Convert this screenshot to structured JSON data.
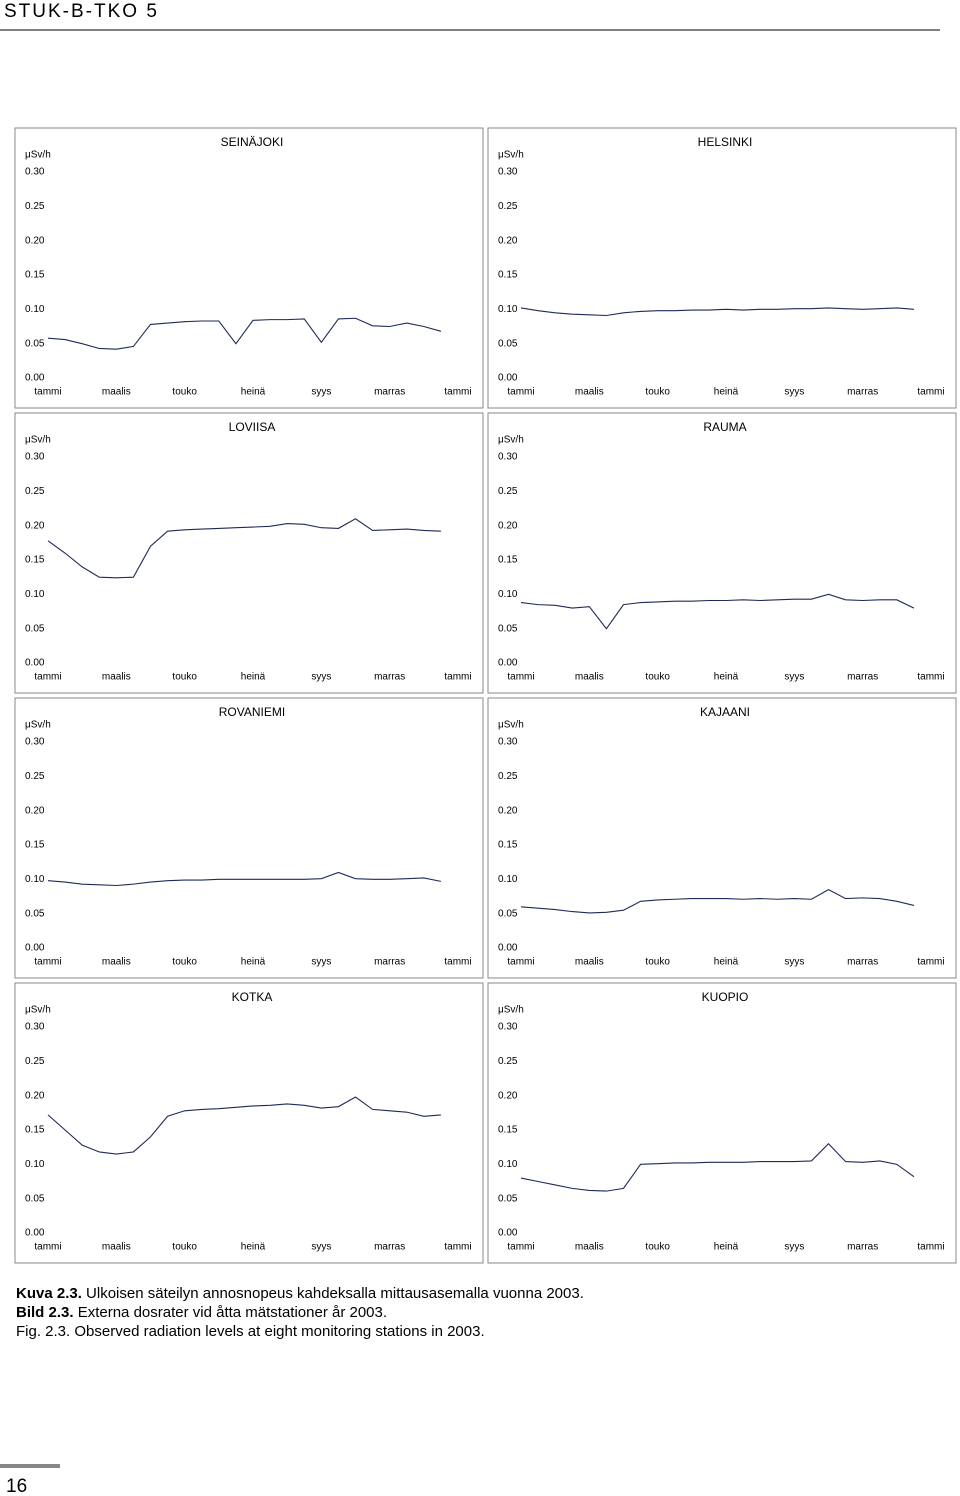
{
  "header": "STUK-B-TKO 5",
  "caption": [
    {
      "label": "Kuva 2.3.",
      "text": "Ulkoisen säteilyn annosnopeus kahdeksalla mittausasemalla vuonna 2003."
    },
    {
      "label": "Bild 2.3.",
      "text": "Externa dosrater vid åtta mätstationer år 2003."
    },
    {
      "label": "Fig. 2.3.",
      "text": "Observed radiation levels at eight monitoring stations in 2003."
    }
  ],
  "page_number": "16",
  "chart_data": [
    {
      "type": "line",
      "title": "SEINÄJOKI",
      "ylabel": "μSv/h",
      "color": "#1f2a5a",
      "x": [
        0,
        0.5,
        1,
        1.5,
        2,
        2.5,
        3,
        3.5,
        4,
        4.5,
        5,
        5.5,
        6,
        6.5,
        7,
        7.5,
        8,
        8.5,
        9,
        9.5,
        10,
        10.5,
        11,
        11.5
      ],
      "values": [
        0.058,
        0.056,
        0.05,
        0.043,
        0.042,
        0.046,
        0.078,
        0.08,
        0.082,
        0.083,
        0.083,
        0.05,
        0.084,
        0.085,
        0.085,
        0.086,
        0.052,
        0.086,
        0.087,
        0.076,
        0.075,
        0.08,
        0.075,
        0.068
      ],
      "xlim": [
        0,
        12
      ],
      "xticks": [
        {
          "value": 0,
          "label": "tammi"
        },
        {
          "value": 2,
          "label": "maalis"
        },
        {
          "value": 4,
          "label": "touko"
        },
        {
          "value": 6,
          "label": "heinä"
        },
        {
          "value": 8,
          "label": "syys"
        },
        {
          "value": 10,
          "label": "marras"
        },
        {
          "value": 12,
          "label": "tammi"
        }
      ],
      "ylim": [
        0,
        0.3
      ],
      "yticks": [
        {
          "value": 0,
          "label": "0.00"
        },
        {
          "value": 0.05,
          "label": "0.05"
        },
        {
          "value": 0.1,
          "label": "0.10"
        },
        {
          "value": 0.15,
          "label": "0.15"
        },
        {
          "value": 0.2,
          "label": "0.20"
        },
        {
          "value": 0.25,
          "label": "0.25"
        },
        {
          "value": 0.3,
          "label": "0.30"
        }
      ]
    },
    {
      "type": "line",
      "title": "HELSINKI",
      "ylabel": "μSv/h",
      "color": "#1f2a5a",
      "x": [
        0,
        0.5,
        1,
        1.5,
        2,
        2.5,
        3,
        3.5,
        4,
        4.5,
        5,
        5.5,
        6,
        6.5,
        7,
        7.5,
        8,
        8.5,
        9,
        9.5,
        10,
        10.5,
        11,
        11.5
      ],
      "values": [
        0.102,
        0.098,
        0.095,
        0.093,
        0.092,
        0.091,
        0.095,
        0.097,
        0.098,
        0.098,
        0.099,
        0.099,
        0.1,
        0.099,
        0.1,
        0.1,
        0.101,
        0.101,
        0.102,
        0.101,
        0.1,
        0.101,
        0.102,
        0.1
      ],
      "xlim": [
        0,
        12
      ],
      "xticks": [
        {
          "value": 0,
          "label": "tammi"
        },
        {
          "value": 2,
          "label": "maalis"
        },
        {
          "value": 4,
          "label": "touko"
        },
        {
          "value": 6,
          "label": "heinä"
        },
        {
          "value": 8,
          "label": "syys"
        },
        {
          "value": 10,
          "label": "marras"
        },
        {
          "value": 12,
          "label": "tammi"
        }
      ],
      "ylim": [
        0,
        0.3
      ],
      "yticks": [
        {
          "value": 0,
          "label": "0.00"
        },
        {
          "value": 0.05,
          "label": "0.05"
        },
        {
          "value": 0.1,
          "label": "0.10"
        },
        {
          "value": 0.15,
          "label": "0.15"
        },
        {
          "value": 0.2,
          "label": "0.20"
        },
        {
          "value": 0.25,
          "label": "0.25"
        },
        {
          "value": 0.3,
          "label": "0.30"
        }
      ]
    },
    {
      "type": "line",
      "title": "LOVIISA",
      "ylabel": "μSv/h",
      "color": "#1f2a5a",
      "x": [
        0,
        0.5,
        1,
        1.5,
        2,
        2.5,
        3,
        3.5,
        4,
        4.5,
        5,
        5.5,
        6,
        6.5,
        7,
        7.5,
        8,
        8.5,
        9,
        9.5,
        10,
        10.5,
        11,
        11.5
      ],
      "values": [
        0.178,
        0.16,
        0.14,
        0.125,
        0.124,
        0.125,
        0.17,
        0.192,
        0.194,
        0.195,
        0.196,
        0.197,
        0.198,
        0.199,
        0.203,
        0.202,
        0.197,
        0.196,
        0.21,
        0.193,
        0.194,
        0.195,
        0.193,
        0.192
      ],
      "xlim": [
        0,
        12
      ],
      "xticks": [
        {
          "value": 0,
          "label": "tammi"
        },
        {
          "value": 2,
          "label": "maalis"
        },
        {
          "value": 4,
          "label": "touko"
        },
        {
          "value": 6,
          "label": "heinä"
        },
        {
          "value": 8,
          "label": "syys"
        },
        {
          "value": 10,
          "label": "marras"
        },
        {
          "value": 12,
          "label": "tammi"
        }
      ],
      "ylim": [
        0,
        0.3
      ],
      "yticks": [
        {
          "value": 0,
          "label": "0.00"
        },
        {
          "value": 0.05,
          "label": "0.05"
        },
        {
          "value": 0.1,
          "label": "0.10"
        },
        {
          "value": 0.15,
          "label": "0.15"
        },
        {
          "value": 0.2,
          "label": "0.20"
        },
        {
          "value": 0.25,
          "label": "0.25"
        },
        {
          "value": 0.3,
          "label": "0.30"
        }
      ]
    },
    {
      "type": "line",
      "title": "RAUMA",
      "ylabel": "μSv/h",
      "color": "#1f2a5a",
      "x": [
        0,
        0.5,
        1,
        1.5,
        2,
        2.5,
        3,
        3.5,
        4,
        4.5,
        5,
        5.5,
        6,
        6.5,
        7,
        7.5,
        8,
        8.5,
        9,
        9.5,
        10,
        10.5,
        11,
        11.5
      ],
      "values": [
        0.088,
        0.085,
        0.084,
        0.08,
        0.082,
        0.05,
        0.085,
        0.088,
        0.089,
        0.09,
        0.09,
        0.091,
        0.091,
        0.092,
        0.091,
        0.092,
        0.093,
        0.093,
        0.1,
        0.092,
        0.091,
        0.092,
        0.092,
        0.08
      ],
      "xlim": [
        0,
        12
      ],
      "xticks": [
        {
          "value": 0,
          "label": "tammi"
        },
        {
          "value": 2,
          "label": "maalis"
        },
        {
          "value": 4,
          "label": "touko"
        },
        {
          "value": 6,
          "label": "heinä"
        },
        {
          "value": 8,
          "label": "syys"
        },
        {
          "value": 10,
          "label": "marras"
        },
        {
          "value": 12,
          "label": "tammi"
        }
      ],
      "ylim": [
        0,
        0.3
      ],
      "yticks": [
        {
          "value": 0,
          "label": "0.00"
        },
        {
          "value": 0.05,
          "label": "0.05"
        },
        {
          "value": 0.1,
          "label": "0.10"
        },
        {
          "value": 0.15,
          "label": "0.15"
        },
        {
          "value": 0.2,
          "label": "0.20"
        },
        {
          "value": 0.25,
          "label": "0.25"
        },
        {
          "value": 0.3,
          "label": "0.30"
        }
      ]
    },
    {
      "type": "line",
      "title": "ROVANIEMI",
      "ylabel": "μSv/h",
      "color": "#1f2a5a",
      "x": [
        0,
        0.5,
        1,
        1.5,
        2,
        2.5,
        3,
        3.5,
        4,
        4.5,
        5,
        5.5,
        6,
        6.5,
        7,
        7.5,
        8,
        8.5,
        9,
        9.5,
        10,
        10.5,
        11,
        11.5
      ],
      "values": [
        0.098,
        0.096,
        0.093,
        0.092,
        0.091,
        0.093,
        0.096,
        0.098,
        0.099,
        0.099,
        0.1,
        0.1,
        0.1,
        0.1,
        0.1,
        0.1,
        0.101,
        0.11,
        0.101,
        0.1,
        0.1,
        0.101,
        0.102,
        0.097
      ],
      "xlim": [
        0,
        12
      ],
      "xticks": [
        {
          "value": 0,
          "label": "tammi"
        },
        {
          "value": 2,
          "label": "maalis"
        },
        {
          "value": 4,
          "label": "touko"
        },
        {
          "value": 6,
          "label": "heinä"
        },
        {
          "value": 8,
          "label": "syys"
        },
        {
          "value": 10,
          "label": "marras"
        },
        {
          "value": 12,
          "label": "tammi"
        }
      ],
      "ylim": [
        0,
        0.3
      ],
      "yticks": [
        {
          "value": 0,
          "label": "0.00"
        },
        {
          "value": 0.05,
          "label": "0.05"
        },
        {
          "value": 0.1,
          "label": "0.10"
        },
        {
          "value": 0.15,
          "label": "0.15"
        },
        {
          "value": 0.2,
          "label": "0.20"
        },
        {
          "value": 0.25,
          "label": "0.25"
        },
        {
          "value": 0.3,
          "label": "0.30"
        }
      ]
    },
    {
      "type": "line",
      "title": "KAJAANI",
      "ylabel": "μSv/h",
      "color": "#1f2a5a",
      "x": [
        0,
        0.5,
        1,
        1.5,
        2,
        2.5,
        3,
        3.5,
        4,
        4.5,
        5,
        5.5,
        6,
        6.5,
        7,
        7.5,
        8,
        8.5,
        9,
        9.5,
        10,
        10.5,
        11,
        11.5
      ],
      "values": [
        0.06,
        0.058,
        0.056,
        0.053,
        0.051,
        0.052,
        0.055,
        0.068,
        0.07,
        0.071,
        0.072,
        0.072,
        0.072,
        0.071,
        0.072,
        0.071,
        0.072,
        0.071,
        0.085,
        0.072,
        0.073,
        0.072,
        0.068,
        0.062
      ],
      "xlim": [
        0,
        12
      ],
      "xticks": [
        {
          "value": 0,
          "label": "tammi"
        },
        {
          "value": 2,
          "label": "maalis"
        },
        {
          "value": 4,
          "label": "touko"
        },
        {
          "value": 6,
          "label": "heinä"
        },
        {
          "value": 8,
          "label": "syys"
        },
        {
          "value": 10,
          "label": "marras"
        },
        {
          "value": 12,
          "label": "tammi"
        }
      ],
      "ylim": [
        0,
        0.3
      ],
      "yticks": [
        {
          "value": 0,
          "label": "0.00"
        },
        {
          "value": 0.05,
          "label": "0.05"
        },
        {
          "value": 0.1,
          "label": "0.10"
        },
        {
          "value": 0.15,
          "label": "0.15"
        },
        {
          "value": 0.2,
          "label": "0.20"
        },
        {
          "value": 0.25,
          "label": "0.25"
        },
        {
          "value": 0.3,
          "label": "0.30"
        }
      ]
    },
    {
      "type": "line",
      "title": "KOTKA",
      "ylabel": "μSv/h",
      "color": "#1f2a5a",
      "x": [
        0,
        0.5,
        1,
        1.5,
        2,
        2.5,
        3,
        3.5,
        4,
        4.5,
        5,
        5.5,
        6,
        6.5,
        7,
        7.5,
        8,
        8.5,
        9,
        9.5,
        10,
        10.5,
        11,
        11.5
      ],
      "values": [
        0.172,
        0.15,
        0.128,
        0.118,
        0.115,
        0.118,
        0.14,
        0.17,
        0.178,
        0.18,
        0.181,
        0.183,
        0.185,
        0.186,
        0.188,
        0.186,
        0.182,
        0.184,
        0.198,
        0.18,
        0.178,
        0.176,
        0.17,
        0.172
      ],
      "xlim": [
        0,
        12
      ],
      "xticks": [
        {
          "value": 0,
          "label": "tammi"
        },
        {
          "value": 2,
          "label": "maalis"
        },
        {
          "value": 4,
          "label": "touko"
        },
        {
          "value": 6,
          "label": "heinä"
        },
        {
          "value": 8,
          "label": "syys"
        },
        {
          "value": 10,
          "label": "marras"
        },
        {
          "value": 12,
          "label": "tammi"
        }
      ],
      "ylim": [
        0,
        0.3
      ],
      "yticks": [
        {
          "value": 0,
          "label": "0.00"
        },
        {
          "value": 0.05,
          "label": "0.05"
        },
        {
          "value": 0.1,
          "label": "0.10"
        },
        {
          "value": 0.15,
          "label": "0.15"
        },
        {
          "value": 0.2,
          "label": "0.20"
        },
        {
          "value": 0.25,
          "label": "0.25"
        },
        {
          "value": 0.3,
          "label": "0.30"
        }
      ]
    },
    {
      "type": "line",
      "title": "KUOPIO",
      "ylabel": "μSv/h",
      "color": "#1f2a5a",
      "x": [
        0,
        0.5,
        1,
        1.5,
        2,
        2.5,
        3,
        3.5,
        4,
        4.5,
        5,
        5.5,
        6,
        6.5,
        7,
        7.5,
        8,
        8.5,
        9,
        9.5,
        10,
        10.5,
        11,
        11.5
      ],
      "values": [
        0.08,
        0.075,
        0.07,
        0.065,
        0.062,
        0.061,
        0.065,
        0.1,
        0.101,
        0.102,
        0.102,
        0.103,
        0.103,
        0.103,
        0.104,
        0.104,
        0.104,
        0.105,
        0.13,
        0.104,
        0.103,
        0.105,
        0.1,
        0.082
      ],
      "xlim": [
        0,
        12
      ],
      "xticks": [
        {
          "value": 0,
          "label": "tammi"
        },
        {
          "value": 2,
          "label": "maalis"
        },
        {
          "value": 4,
          "label": "touko"
        },
        {
          "value": 6,
          "label": "heinä"
        },
        {
          "value": 8,
          "label": "syys"
        },
        {
          "value": 10,
          "label": "marras"
        },
        {
          "value": 12,
          "label": "tammi"
        }
      ],
      "ylim": [
        0,
        0.3
      ],
      "yticks": [
        {
          "value": 0,
          "label": "0.00"
        },
        {
          "value": 0.05,
          "label": "0.05"
        },
        {
          "value": 0.1,
          "label": "0.10"
        },
        {
          "value": 0.15,
          "label": "0.15"
        },
        {
          "value": 0.2,
          "label": "0.20"
        },
        {
          "value": 0.25,
          "label": "0.25"
        },
        {
          "value": 0.3,
          "label": "0.30"
        }
      ]
    }
  ]
}
